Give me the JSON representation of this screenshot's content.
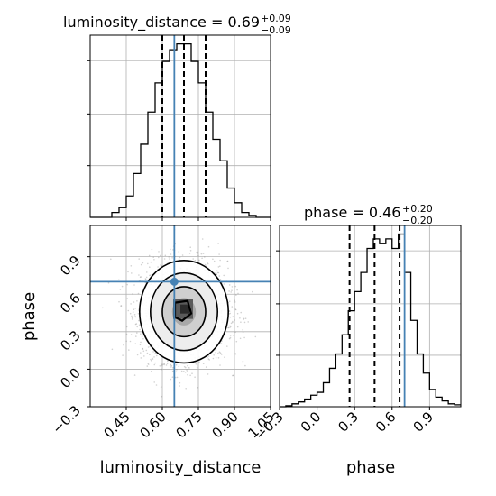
{
  "chart_data": {
    "type": "corner",
    "parameters": [
      "luminosity_distance",
      "phase"
    ],
    "truths": {
      "luminosity_distance": 0.65,
      "phase": 0.7
    },
    "titles": [
      {
        "main": "luminosity_distance = 0.69",
        "sup": "+0.09",
        "sub": "−0.09"
      },
      {
        "main": "phase = 0.46",
        "sup": "+0.20",
        "sub": "−0.20"
      }
    ],
    "hist_luminosity_distance": {
      "xlim": [
        0.3,
        1.05
      ],
      "quantiles": [
        0.6,
        0.69,
        0.78
      ],
      "bin_edges": [
        0.3,
        0.33,
        0.36,
        0.39,
        0.42,
        0.45,
        0.48,
        0.51,
        0.54,
        0.57,
        0.6,
        0.63,
        0.66,
        0.69,
        0.72,
        0.75,
        0.78,
        0.81,
        0.84,
        0.87,
        0.9,
        0.93,
        0.96,
        0.99,
        1.02,
        1.05
      ],
      "counts": [
        0,
        0,
        0,
        5,
        10,
        22,
        45,
        75,
        108,
        138,
        160,
        172,
        178,
        178,
        160,
        138,
        108,
        80,
        58,
        30,
        15,
        5,
        2,
        0,
        0
      ]
    },
    "hist_phase": {
      "xlim": [
        -0.3,
        1.15
      ],
      "quantiles": [
        0.26,
        0.46,
        0.66
      ],
      "bin_edges": [
        -0.3,
        -0.25,
        -0.2,
        -0.15,
        -0.1,
        -0.05,
        0.0,
        0.05,
        0.1,
        0.15,
        0.2,
        0.25,
        0.3,
        0.35,
        0.4,
        0.45,
        0.5,
        0.55,
        0.6,
        0.65,
        0.7,
        0.75,
        0.8,
        0.85,
        0.9,
        0.95,
        1.0,
        1.05,
        1.1,
        1.15
      ],
      "counts": [
        0,
        1,
        3,
        5,
        8,
        12,
        15,
        25,
        40,
        55,
        75,
        100,
        120,
        140,
        165,
        175,
        170,
        175,
        165,
        180,
        140,
        90,
        55,
        35,
        18,
        10,
        6,
        3,
        2
      ]
    },
    "scatter_2d": {
      "xlim": [
        0.3,
        1.05
      ],
      "ylim": [
        -0.3,
        1.15
      ],
      "center": [
        0.69,
        0.46
      ],
      "spread": [
        0.09,
        0.2
      ],
      "n_points": 5000
    },
    "x_ticks_luminosity_distance": [
      "0.45",
      "0.60",
      "0.75",
      "0.90",
      "1.05"
    ],
    "y_ticks_phase": [
      "−0.3",
      "0.0",
      "0.3",
      "0.6",
      "0.9"
    ],
    "x_ticks_phase": [
      "−0.3",
      "0.0",
      "0.3",
      "0.6",
      "0.9"
    ],
    "xlabel_left": "luminosity_distance",
    "xlabel_right": "phase",
    "ylabel": "phase",
    "colors": {
      "truth": "#4682b4",
      "hist": "#000000",
      "grid": "#b0b0b0",
      "points": "#7f7f7f"
    }
  }
}
